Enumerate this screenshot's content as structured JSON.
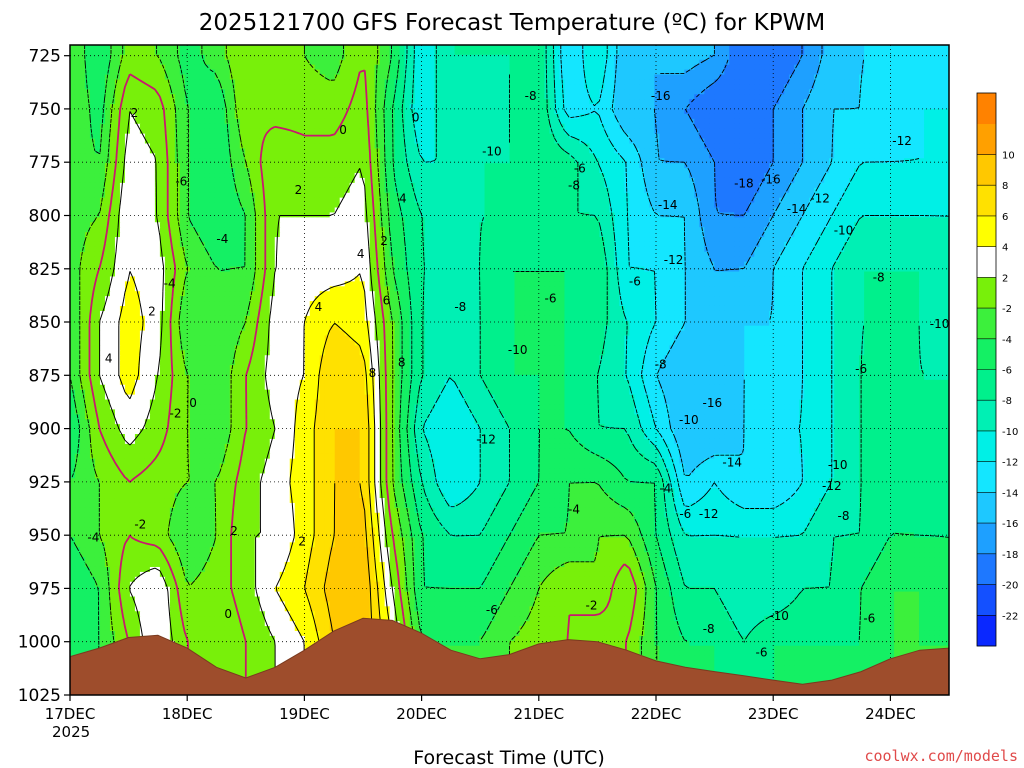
{
  "chart_data": {
    "type": "heatmap",
    "title": "2025121700 GFS Forecast Temperature (ºC) for KPWM",
    "xlabel": "Forecast Time (UTC)",
    "ylabel": "",
    "credit": "coolwx.com/models",
    "x_start_year": "2025",
    "x_ticks": [
      "17DEC",
      "18DEC",
      "19DEC",
      "20DEC",
      "21DEC",
      "22DEC",
      "23DEC",
      "24DEC"
    ],
    "xlim_days": [
      0,
      7.5
    ],
    "y_ticks": [
      725,
      750,
      775,
      800,
      825,
      850,
      875,
      900,
      925,
      950,
      975,
      1000,
      1025
    ],
    "ylim_hpa": [
      1025,
      720
    ],
    "grid": true,
    "colorbar": {
      "levels": [
        -24,
        -22,
        -20,
        -18,
        -16,
        -14,
        -12,
        -10,
        -8,
        -6,
        -4,
        -2,
        2,
        4,
        6,
        8,
        10,
        12
      ],
      "labels": [
        "-22",
        "-20",
        "-18",
        "-16",
        "-14",
        "-12",
        "-10",
        "-8",
        "-6",
        "-4",
        "-2",
        "2",
        "4",
        "6",
        "8",
        "10"
      ],
      "colors": [
        "#0a28ff",
        "#1450ff",
        "#1e78ff",
        "#1ea0ff",
        "#1ec8ff",
        "#14e6ff",
        "#00f0e6",
        "#00f0b4",
        "#00f08c",
        "#14f064",
        "#3cf03c",
        "#78f00a",
        "#ffffff",
        "#ffff00",
        "#ffe100",
        "#ffc800",
        "#ffa000",
        "#ff8200"
      ]
    },
    "grid_times": [
      0,
      0.25,
      0.5,
      0.75,
      1.0,
      1.25,
      1.5,
      1.75,
      2.0,
      2.25,
      2.5,
      2.75,
      3.0,
      3.25,
      3.5,
      3.75,
      4.0,
      4.25,
      4.5,
      4.75,
      5.0,
      5.25,
      5.5,
      5.75,
      6.0,
      6.25,
      6.5,
      6.75,
      7.0,
      7.25,
      7.5
    ],
    "grid_levels": [
      725,
      750,
      775,
      800,
      825,
      850,
      875,
      900,
      925,
      950,
      975,
      1000
    ],
    "temperature": [
      [
        -2,
        -6,
        -1,
        -2,
        -5,
        -3,
        0,
        -1,
        -2,
        -3,
        0,
        -4,
        -12,
        -8,
        -8,
        -8,
        -6,
        -14,
        -10,
        -16,
        -16,
        -15,
        -16,
        -20,
        -20,
        -18,
        -15,
        -14,
        -14,
        -14,
        -14
      ],
      [
        -2,
        -5,
        2,
        1,
        -4,
        -6,
        0,
        -1,
        -1,
        -1,
        1,
        -6,
        -12,
        -8,
        -10,
        -8,
        -6,
        -13,
        -12,
        -16,
        -16,
        -18,
        -20,
        -20,
        -18,
        -16,
        -14,
        -14,
        -13,
        -12,
        -12
      ],
      [
        -3,
        -4,
        3,
        2,
        -4,
        -6,
        -2,
        2,
        1,
        1,
        2,
        -6,
        -10,
        -10,
        -8,
        -8,
        -6,
        -7,
        -10,
        -12,
        -16,
        -16,
        -18,
        -20,
        -18,
        -16,
        -14,
        -12,
        -12,
        -12,
        -12
      ],
      [
        -3,
        -2,
        4,
        2,
        -4,
        -6,
        -4,
        2,
        2,
        2,
        3,
        -5,
        -8,
        -10,
        -8,
        -8,
        -6,
        -8,
        -8,
        -12,
        -14,
        -14,
        -18,
        -18,
        -16,
        -14,
        -12,
        -10,
        -10,
        -10,
        -10
      ],
      [
        -3,
        0,
        4,
        3,
        -2,
        -4,
        -4,
        2,
        3,
        3,
        4,
        -4,
        -8,
        -8,
        -8,
        -6,
        -6,
        -6,
        -6,
        -12,
        -12,
        -14,
        -16,
        -16,
        -14,
        -12,
        -10,
        -8,
        -8,
        -8,
        -9
      ],
      [
        -4,
        2,
        5,
        3,
        -4,
        -4,
        -2,
        3,
        4,
        6,
        5,
        -2,
        -8,
        -10,
        -8,
        -6,
        -6,
        -6,
        -7,
        -10,
        -12,
        -14,
        -16,
        -14,
        -14,
        -12,
        -10,
        -8,
        -8,
        -8,
        -10
      ],
      [
        -4,
        2,
        5,
        2,
        -2,
        -4,
        0,
        3,
        4,
        8,
        7,
        -2,
        -8,
        -10,
        -8,
        -6,
        -6,
        -6,
        -8,
        -10,
        -14,
        -16,
        -16,
        -14,
        -14,
        -12,
        -10,
        -8,
        -6,
        -8,
        -8
      ],
      [
        -6,
        0,
        3,
        1,
        -2,
        -4,
        0,
        2,
        5,
        8,
        8,
        -2,
        -10,
        -12,
        -10,
        -8,
        -6,
        -6,
        -8,
        -8,
        -12,
        -16,
        -16,
        -14,
        -12,
        -12,
        -10,
        -8,
        -6,
        -8,
        -8
      ],
      [
        -4,
        -2,
        0,
        -1,
        -2,
        -2,
        1,
        3,
        5,
        8,
        8,
        -2,
        -8,
        -12,
        -10,
        -8,
        -6,
        -4,
        -4,
        -6,
        -6,
        -14,
        -12,
        -14,
        -14,
        -12,
        -10,
        -8,
        -6,
        -8,
        -8
      ],
      [
        -4,
        -2,
        0,
        -1,
        -4,
        -2,
        2,
        2,
        5,
        8,
        9,
        0,
        -6,
        -8,
        -8,
        -6,
        -4,
        -4,
        -2,
        -2,
        -6,
        -10,
        -10,
        -10,
        -10,
        -10,
        -8,
        -8,
        -6,
        -6,
        -6
      ],
      [
        -6,
        -4,
        2,
        4,
        -2,
        -1,
        1,
        4,
        6,
        9,
        10,
        2,
        -6,
        -6,
        -6,
        -4,
        -2,
        0,
        -2,
        2,
        -4,
        -8,
        -8,
        -10,
        -10,
        -8,
        -8,
        -6,
        -4,
        -4,
        -6
      ],
      [
        -6,
        -4,
        0,
        4,
        0,
        -2,
        0,
        2,
        4,
        8,
        10,
        4,
        -4,
        -4,
        -4,
        -2,
        -1,
        0,
        2,
        0,
        -4,
        -6,
        -6,
        -8,
        -6,
        -6,
        -6,
        -6,
        -4,
        -4,
        -4
      ]
    ],
    "surface_pressure_hpa": [
      1007,
      1003,
      998,
      997,
      1003,
      1012,
      1017,
      1012,
      1004,
      995,
      989,
      990,
      996,
      1004,
      1008,
      1006,
      1001,
      999,
      1000,
      1004,
      1009,
      1012,
      1014,
      1016,
      1018,
      1020,
      1018,
      1014,
      1008,
      1004,
      1003
    ],
    "contour_labels": [
      {
        "t": 0.55,
        "p": 752,
        "v": "2"
      },
      {
        "t": 0.95,
        "p": 784,
        "v": "-6"
      },
      {
        "t": 1.3,
        "p": 811,
        "v": "-4"
      },
      {
        "t": 0.85,
        "p": 832,
        "v": "-4"
      },
      {
        "t": 0.7,
        "p": 845,
        "v": "2"
      },
      {
        "t": 0.33,
        "p": 867,
        "v": "4"
      },
      {
        "t": 1.05,
        "p": 888,
        "v": "0"
      },
      {
        "t": 0.9,
        "p": 893,
        "v": "-2"
      },
      {
        "t": 0.6,
        "p": 945,
        "v": "-2"
      },
      {
        "t": 0.2,
        "p": 951,
        "v": "-4"
      },
      {
        "t": 1.4,
        "p": 948,
        "v": "2"
      },
      {
        "t": 1.35,
        "p": 987,
        "v": "0"
      },
      {
        "t": 1.95,
        "p": 788,
        "v": "2"
      },
      {
        "t": 2.33,
        "p": 760,
        "v": "0"
      },
      {
        "t": 2.95,
        "p": 754,
        "v": "0"
      },
      {
        "t": 2.48,
        "p": 818,
        "v": "4"
      },
      {
        "t": 2.68,
        "p": 812,
        "v": "2"
      },
      {
        "t": 2.84,
        "p": 792,
        "v": "4"
      },
      {
        "t": 2.12,
        "p": 843,
        "v": "4"
      },
      {
        "t": 2.7,
        "p": 840,
        "v": "6"
      },
      {
        "t": 2.58,
        "p": 874,
        "v": "8"
      },
      {
        "t": 2.83,
        "p": 869,
        "v": "8"
      },
      {
        "t": 1.98,
        "p": 953,
        "v": "2"
      },
      {
        "t": 3.33,
        "p": 843,
        "v": "-8"
      },
      {
        "t": 3.6,
        "p": 770,
        "v": "-10"
      },
      {
        "t": 3.93,
        "p": 744,
        "v": "-8"
      },
      {
        "t": 3.82,
        "p": 863,
        "v": "-10"
      },
      {
        "t": 3.55,
        "p": 905,
        "v": "-12"
      },
      {
        "t": 3.6,
        "p": 985,
        "v": "-6"
      },
      {
        "t": 4.1,
        "p": 839,
        "v": "-6"
      },
      {
        "t": 4.3,
        "p": 786,
        "v": "-8"
      },
      {
        "t": 4.35,
        "p": 778,
        "v": "-6"
      },
      {
        "t": 4.3,
        "p": 938,
        "v": "-4"
      },
      {
        "t": 4.45,
        "p": 983,
        "v": "-2"
      },
      {
        "t": 4.82,
        "p": 831,
        "v": "-6"
      },
      {
        "t": 5.04,
        "p": 744,
        "v": "-16"
      },
      {
        "t": 5.1,
        "p": 795,
        "v": "-14"
      },
      {
        "t": 5.15,
        "p": 821,
        "v": "-12"
      },
      {
        "t": 5.04,
        "p": 870,
        "v": "-8"
      },
      {
        "t": 5.28,
        "p": 896,
        "v": "-10"
      },
      {
        "t": 5.08,
        "p": 928,
        "v": "-4"
      },
      {
        "t": 5.25,
        "p": 940,
        "v": "-6"
      },
      {
        "t": 5.45,
        "p": 940,
        "v": "-12"
      },
      {
        "t": 5.48,
        "p": 888,
        "v": "-16"
      },
      {
        "t": 5.65,
        "p": 916,
        "v": "-14"
      },
      {
        "t": 5.45,
        "p": 994,
        "v": "-8"
      },
      {
        "t": 5.75,
        "p": 785,
        "v": "-18"
      },
      {
        "t": 5.98,
        "p": 783,
        "v": "-16"
      },
      {
        "t": 6.2,
        "p": 797,
        "v": "-14"
      },
      {
        "t": 6.4,
        "p": 792,
        "v": "-12"
      },
      {
        "t": 6.6,
        "p": 807,
        "v": "-10"
      },
      {
        "t": 7.1,
        "p": 765,
        "v": "-12"
      },
      {
        "t": 6.9,
        "p": 829,
        "v": "-8"
      },
      {
        "t": 7.42,
        "p": 851,
        "v": "-10"
      },
      {
        "t": 6.75,
        "p": 872,
        "v": "-6"
      },
      {
        "t": 6.55,
        "p": 917,
        "v": "-10"
      },
      {
        "t": 6.5,
        "p": 927,
        "v": "-12"
      },
      {
        "t": 6.6,
        "p": 941,
        "v": "-8"
      },
      {
        "t": 6.05,
        "p": 988,
        "v": "-10"
      },
      {
        "t": 6.82,
        "p": 989,
        "v": "-6"
      },
      {
        "t": 5.9,
        "p": 1005,
        "v": "-6"
      }
    ]
  }
}
